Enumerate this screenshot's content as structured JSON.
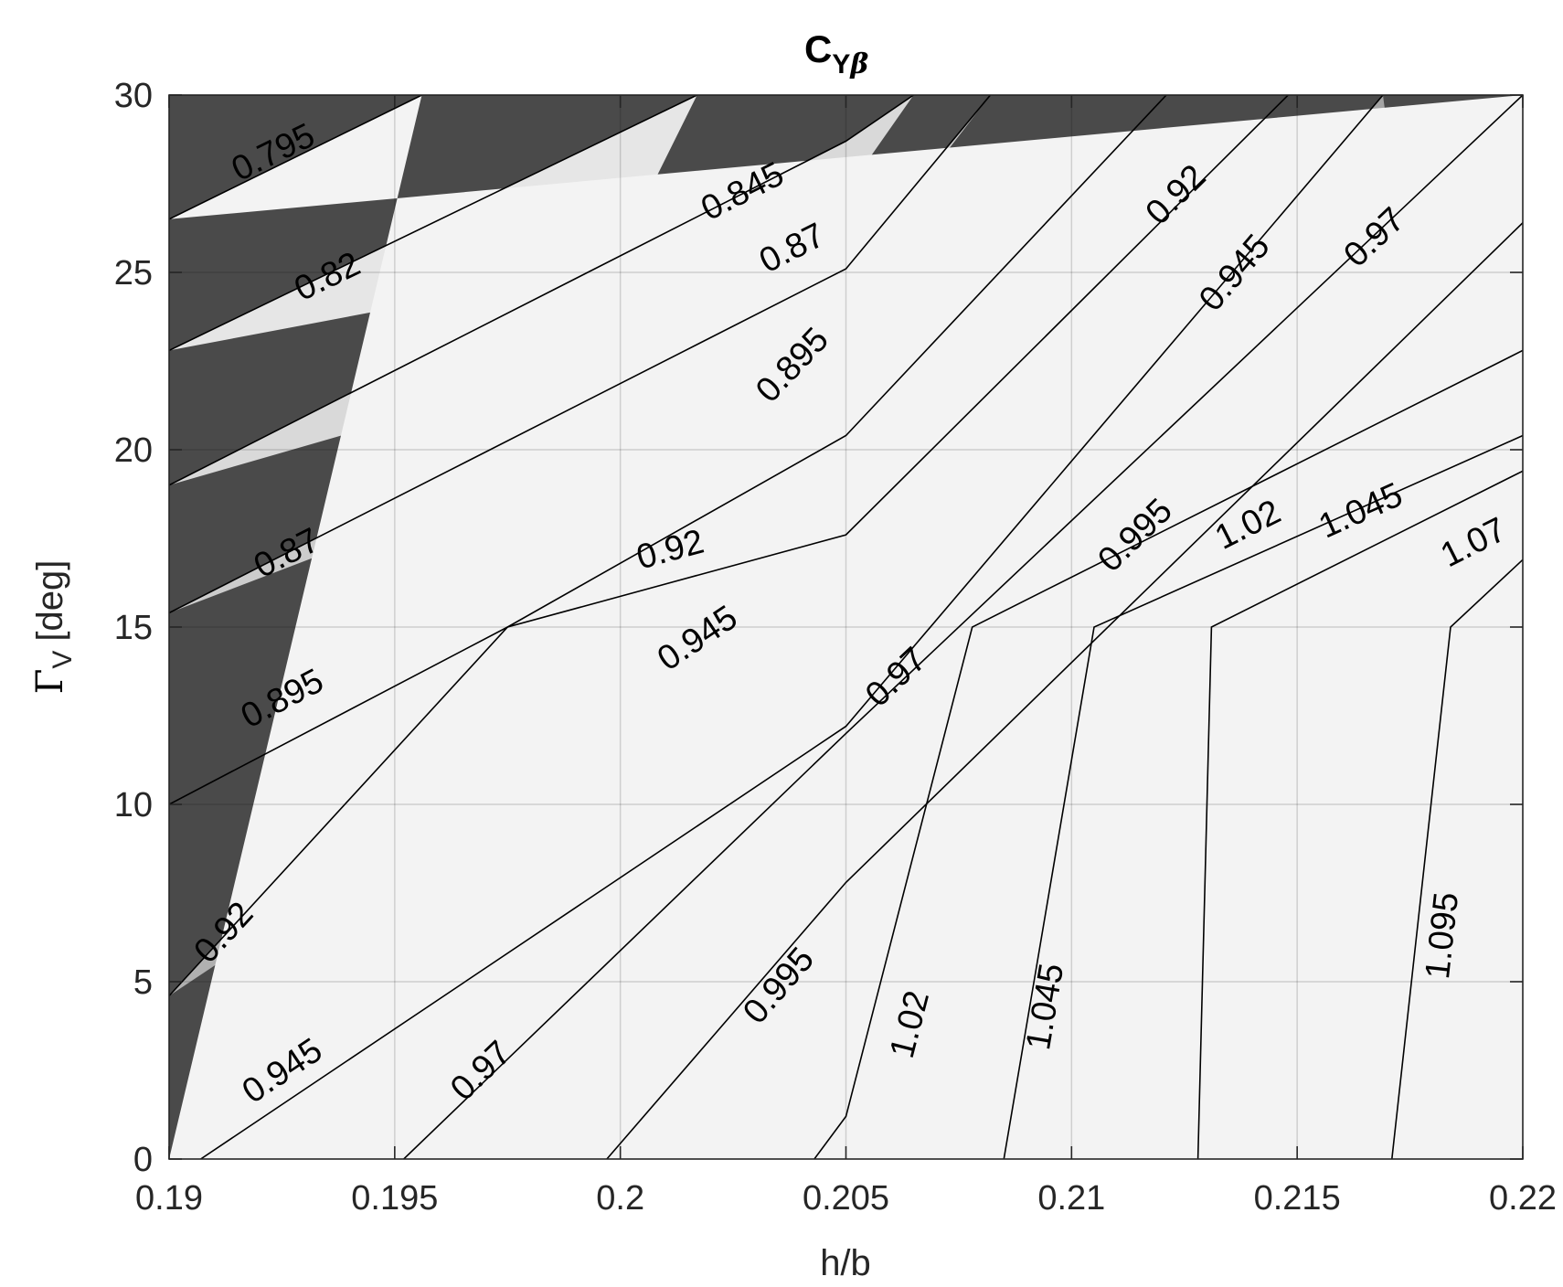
{
  "chart_data": {
    "type": "contour",
    "title": "C",
    "title_subscript": "Y",
    "title_subscript_symbol": "β",
    "xlabel": "h/b",
    "ylabel": "Γ",
    "ylabel_subscript": "V",
    "ylabel_unit": "[deg]",
    "xlim": [
      0.19,
      0.22
    ],
    "ylim": [
      0,
      30
    ],
    "xticks": [
      0.19,
      0.195,
      0.2,
      0.205,
      0.21,
      0.215,
      0.22
    ],
    "xtick_labels": [
      "0.19",
      "0.195",
      "0.2",
      "0.205",
      "0.21",
      "0.215",
      "0.22"
    ],
    "yticks": [
      0,
      5,
      10,
      15,
      20,
      25,
      30
    ],
    "ytick_labels": [
      "0",
      "5",
      "10",
      "15",
      "20",
      "25",
      "30"
    ],
    "grid": true,
    "colormap": "gray",
    "fill_colors": [
      "#f3f3f3",
      "#e6e6e6",
      "#d9d9d9",
      "#cccccc",
      "#bdbdbd",
      "#b0b0b0",
      "#a4a4a4",
      "#979797",
      "#8a8a8a",
      "#7d7d7d",
      "#717171",
      "#646464",
      "#575757",
      "#4a4a4a"
    ],
    "levels": [
      {
        "value": 0.795,
        "label": "0.795",
        "points": [
          [
            0.19,
            26.5
          ],
          [
            0.1956,
            30
          ]
        ],
        "labels_at": [
          {
            "x": 0.1923,
            "y": 28.4
          }
        ]
      },
      {
        "value": 0.82,
        "label": "0.82",
        "points": [
          [
            0.19,
            22.8
          ],
          [
            0.2017,
            30
          ]
        ],
        "labels_at": [
          {
            "x": 0.1935,
            "y": 24.9
          }
        ]
      },
      {
        "value": 0.845,
        "label": "0.845",
        "points": [
          [
            0.19,
            19.0
          ],
          [
            0.205,
            28.7
          ],
          [
            0.2065,
            30
          ]
        ],
        "labels_at": [
          {
            "x": 0.2027,
            "y": 27.3
          }
        ]
      },
      {
        "value": 0.87,
        "label": "0.87",
        "points": [
          [
            0.19,
            15.4
          ],
          [
            0.205,
            25.1
          ],
          [
            0.2082,
            30
          ]
        ],
        "labels_at": [
          {
            "x": 0.1926,
            "y": 17.1
          },
          {
            "x": 0.2038,
            "y": 25.7
          }
        ]
      },
      {
        "value": 0.895,
        "label": "0.895",
        "points": [
          [
            0.19,
            10.0
          ],
          [
            0.1975,
            15.0
          ],
          [
            0.205,
            20.4
          ],
          [
            0.2121,
            30
          ]
        ],
        "labels_at": [
          {
            "x": 0.1925,
            "y": 13.0
          },
          {
            "x": 0.2038,
            "y": 22.4
          }
        ]
      },
      {
        "value": 0.92,
        "label": "0.92",
        "points": [
          [
            0.19,
            4.6
          ],
          [
            0.1975,
            15.0
          ],
          [
            0.205,
            17.6
          ],
          [
            0.2148,
            30
          ]
        ],
        "labels_at": [
          {
            "x": 0.1912,
            "y": 6.4
          },
          {
            "x": 0.2011,
            "y": 17.2
          },
          {
            "x": 0.2123,
            "y": 27.2
          }
        ]
      },
      {
        "value": 0.945,
        "label": "0.945",
        "points": [
          [
            0.1907,
            0
          ],
          [
            0.205,
            12.2
          ],
          [
            0.2169,
            30
          ]
        ],
        "labels_at": [
          {
            "x": 0.1925,
            "y": 2.5
          },
          {
            "x": 0.2017,
            "y": 14.7
          },
          {
            "x": 0.2136,
            "y": 25.0
          }
        ]
      },
      {
        "value": 0.97,
        "label": "0.97",
        "points": [
          [
            0.1952,
            0
          ],
          [
            0.205,
            12.0
          ],
          [
            0.22,
            30
          ]
        ],
        "labels_at": [
          {
            "x": 0.1969,
            "y": 2.5
          },
          {
            "x": 0.2061,
            "y": 13.6
          },
          {
            "x": 0.2167,
            "y": 26.0
          }
        ]
      },
      {
        "value": 0.995,
        "label": "0.995",
        "points": [
          [
            0.1997,
            0
          ],
          [
            0.205,
            7.8
          ],
          [
            0.22,
            26.4
          ]
        ],
        "labels_at": [
          {
            "x": 0.2035,
            "y": 4.9
          },
          {
            "x": 0.2114,
            "y": 17.6
          }
        ]
      },
      {
        "value": 1.02,
        "label": "1.02",
        "points": [
          [
            0.2043,
            0
          ],
          [
            0.205,
            1.2
          ],
          [
            0.2078,
            15.0
          ],
          [
            0.22,
            22.8
          ]
        ],
        "labels_at": [
          {
            "x": 0.2064,
            "y": 3.8
          },
          {
            "x": 0.2139,
            "y": 17.9
          }
        ]
      },
      {
        "value": 1.045,
        "label": "1.045",
        "points": [
          [
            0.2085,
            0
          ],
          [
            0.2105,
            15.0
          ],
          [
            0.22,
            20.4
          ]
        ],
        "labels_at": [
          {
            "x": 0.2094,
            "y": 4.3
          },
          {
            "x": 0.2164,
            "y": 18.3
          }
        ]
      },
      {
        "value": 1.07,
        "label": "1.07",
        "points": [
          [
            0.2128,
            0
          ],
          [
            0.2131,
            15.0
          ],
          [
            0.22,
            19.4
          ]
        ],
        "labels_at": [
          {
            "x": 0.2189,
            "y": 17.4
          }
        ]
      },
      {
        "value": 1.095,
        "label": "1.095",
        "points": [
          [
            0.2171,
            0
          ],
          [
            0.2184,
            15.0
          ],
          [
            0.22,
            16.9
          ]
        ],
        "labels_at": [
          {
            "x": 0.2182,
            "y": 6.3
          }
        ]
      }
    ]
  }
}
